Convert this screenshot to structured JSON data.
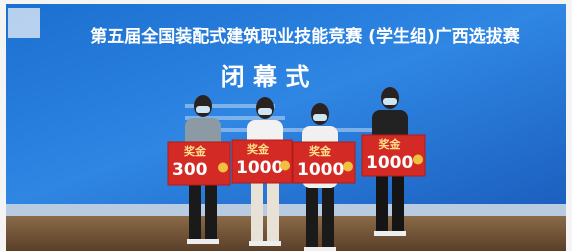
{
  "banner": {
    "title": "第五届全国装配式建筑职业技能竞赛 (学生组)广西选拔赛",
    "subtitle": "闭 幕 式"
  },
  "signs": [
    {
      "label": "奖金",
      "amount": "300"
    },
    {
      "label": "奖金",
      "amount": "1000"
    },
    {
      "label": "奖金",
      "amount": "1000"
    },
    {
      "label": "奖金",
      "amount": "1000"
    }
  ]
}
